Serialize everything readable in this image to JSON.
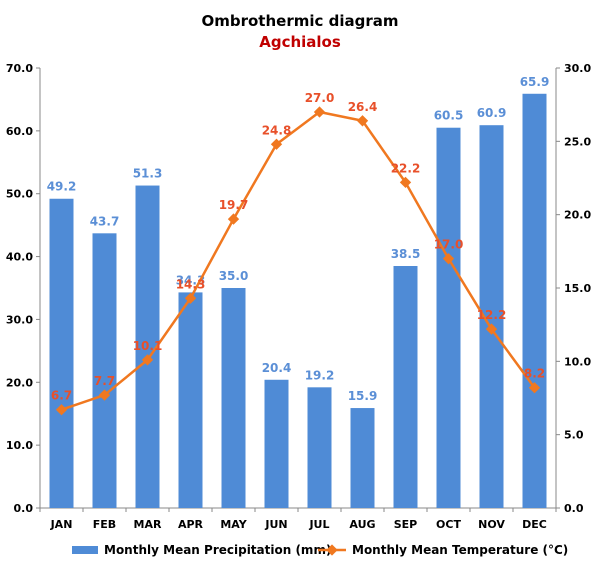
{
  "chart_data": {
    "type": "bar+line",
    "title": "Ombrothermic diagram",
    "subtitle": "Agchialos",
    "categories": [
      "JAN",
      "FEB",
      "MAR",
      "APR",
      "MAY",
      "JUN",
      "JUL",
      "AUG",
      "SEP",
      "OCT",
      "NOV",
      "DEC"
    ],
    "series": [
      {
        "name": "Monthly Mean Precipitation (mm)",
        "type": "bar",
        "axis": "left",
        "color": "#4f8bd6",
        "label_color": "#5b8fd6",
        "values": [
          49.2,
          43.7,
          51.3,
          34.3,
          35.0,
          20.4,
          19.2,
          15.9,
          38.5,
          60.5,
          60.9,
          65.9
        ],
        "labels": [
          "49.2",
          "43.7",
          "51.3",
          "34.3",
          "35.0",
          "20.4",
          "19.2",
          "15.9",
          "38.5",
          "60.5",
          "60.9",
          "65.9"
        ]
      },
      {
        "name": "Monthly Mean Temperature (°C)",
        "type": "line",
        "axis": "right",
        "color": "#f07820",
        "label_color": "#e8502a",
        "values": [
          6.7,
          7.7,
          10.1,
          14.3,
          19.7,
          24.8,
          27.0,
          26.4,
          22.2,
          17.0,
          12.2,
          8.2
        ],
        "labels": [
          "6.7",
          "7.7",
          "10.1",
          "14.3",
          "19.7",
          "24.8",
          "27.0",
          "26.4",
          "22.2",
          "17.0",
          "12.2",
          "8.2"
        ]
      }
    ],
    "y_left": {
      "ylim": [
        0,
        70
      ],
      "ticks": [
        "0.0",
        "10.0",
        "20.0",
        "30.0",
        "40.0",
        "50.0",
        "60.0",
        "70.0"
      ],
      "tick_values": [
        0,
        10,
        20,
        30,
        40,
        50,
        60,
        70
      ]
    },
    "y_right": {
      "ylim": [
        0,
        30
      ],
      "ticks": [
        "0.0",
        "5.0",
        "10.0",
        "15.0",
        "20.0",
        "25.0",
        "30.0"
      ],
      "tick_values": [
        0,
        5,
        10,
        15,
        20,
        25,
        30
      ]
    },
    "grid": false,
    "legend_position": "bottom"
  }
}
